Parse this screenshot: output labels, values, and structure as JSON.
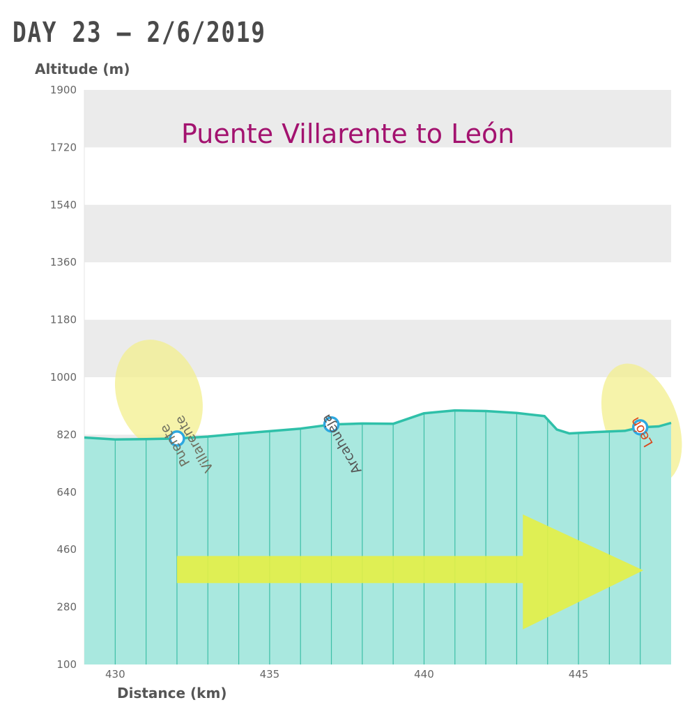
{
  "page": {
    "title": "DAY 23 — 2/6/2019"
  },
  "chart_data": {
    "type": "area",
    "subtitle": "Puente Villarente to León",
    "xlabel": "Distance (km)",
    "ylabel": "Altitude (m)",
    "xlim": [
      429,
      448
    ],
    "ylim": [
      100,
      1900
    ],
    "xticks": [
      430,
      435,
      440,
      445
    ],
    "yticks": [
      100,
      280,
      460,
      640,
      820,
      1000,
      1180,
      1360,
      1540,
      1720,
      1900
    ],
    "x": [
      429,
      430,
      431,
      432,
      433,
      434,
      435,
      436,
      437,
      438,
      439,
      440,
      441,
      442,
      443,
      443.9,
      444.3,
      444.7,
      445.5,
      446.5,
      447,
      447.6,
      448
    ],
    "y": [
      811,
      805,
      806,
      808,
      814,
      823,
      831,
      839,
      852,
      855,
      854,
      887,
      896,
      894,
      888,
      878,
      836,
      824,
      828,
      832,
      843,
      846,
      857
    ],
    "waypoints": [
      {
        "name": "Puente Villarente",
        "x": 432,
        "y": 808,
        "color": "#6f7060"
      },
      {
        "name": "Arcahueja",
        "x": 437,
        "y": 852,
        "color": "#555555"
      },
      {
        "name": "León",
        "x": 447,
        "y": 843,
        "color": "#d9481c"
      }
    ],
    "grid": true,
    "legend": "none",
    "colors": {
      "line": "#2fc0a9",
      "fill": "#a9e8df",
      "band": "#ebebeb",
      "waypoint": "#2da8e0",
      "highlight": "#f3ef8e",
      "arrow": "#e4ef45",
      "subtitle": "#a3126f"
    }
  }
}
